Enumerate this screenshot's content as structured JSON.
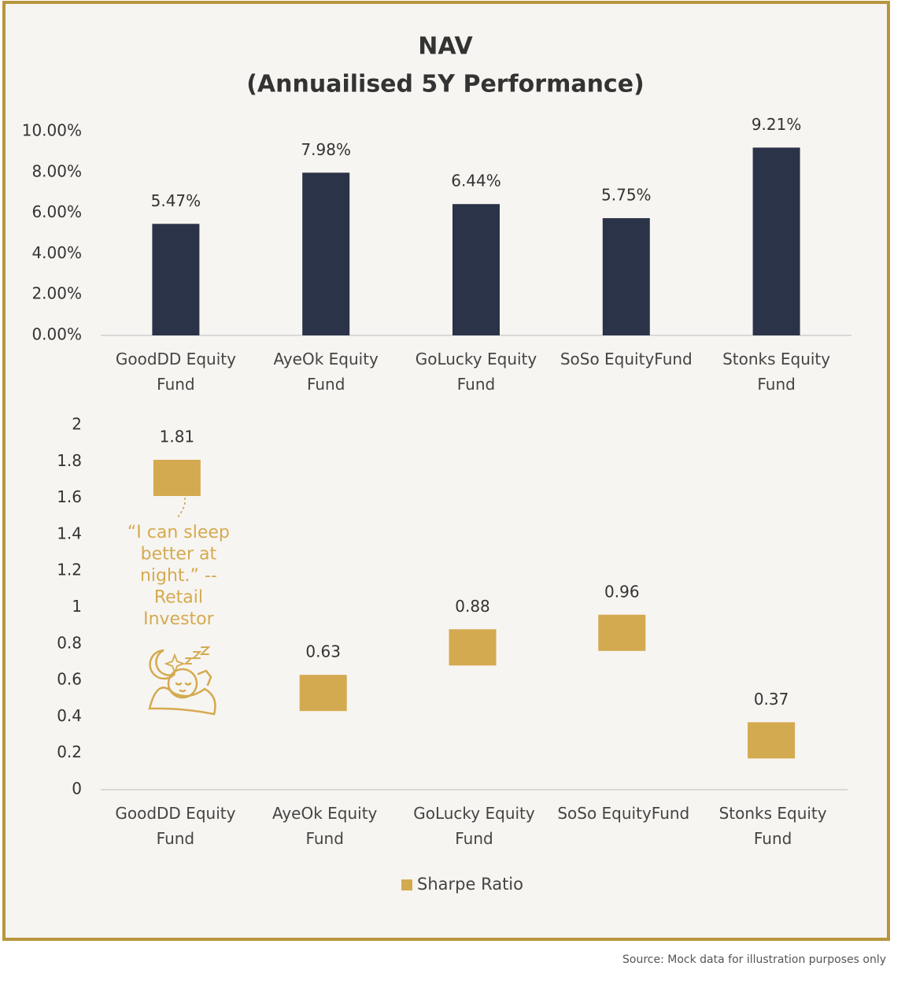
{
  "chart_data": [
    {
      "type": "bar",
      "title": "NAV",
      "subtitle": "(Annuailised 5Y Performance)",
      "categories": [
        "GoodDD Equity Fund",
        "AyeOk Equity Fund",
        "GoLucky Equity Fund",
        "SoSo EquityFund",
        "Stonks Equity Fund"
      ],
      "values": [
        5.47,
        7.98,
        6.44,
        5.75,
        9.21
      ],
      "value_labels": [
        "5.47%",
        "7.98%",
        "6.44%",
        "5.75%",
        "9.21%"
      ],
      "color": "#2b3348",
      "ylim": [
        0,
        10
      ],
      "yticks": [
        {
          "value": 0,
          "label": "0.00%"
        },
        {
          "value": 2,
          "label": "2.00%"
        },
        {
          "value": 4,
          "label": "4.00%"
        },
        {
          "value": 6,
          "label": "6.00%"
        },
        {
          "value": 8,
          "label": "8.00%"
        },
        {
          "value": 10,
          "label": "10.00%"
        }
      ],
      "grid": false
    },
    {
      "type": "scatter",
      "marker": "square",
      "categories": [
        "GoodDD Equity Fund",
        "AyeOk Equity Fund",
        "GoLucky Equity Fund",
        "SoSo EquityFund",
        "Stonks Equity Fund"
      ],
      "series": [
        {
          "name": "Sharpe Ratio",
          "color": "#d4aa50",
          "values": [
            1.81,
            0.63,
            0.88,
            0.96,
            0.37
          ]
        }
      ],
      "ylim": [
        0,
        2
      ],
      "yticks": [
        0,
        0.2,
        0.4,
        0.6,
        0.8,
        1,
        1.2,
        1.4,
        1.6,
        1.8,
        2
      ],
      "grid": false,
      "legend": "bottom",
      "annotation": "“I can sleep better at night.” -- Retail Investor"
    }
  ],
  "source": "Source: Mock data for illustration purposes only"
}
